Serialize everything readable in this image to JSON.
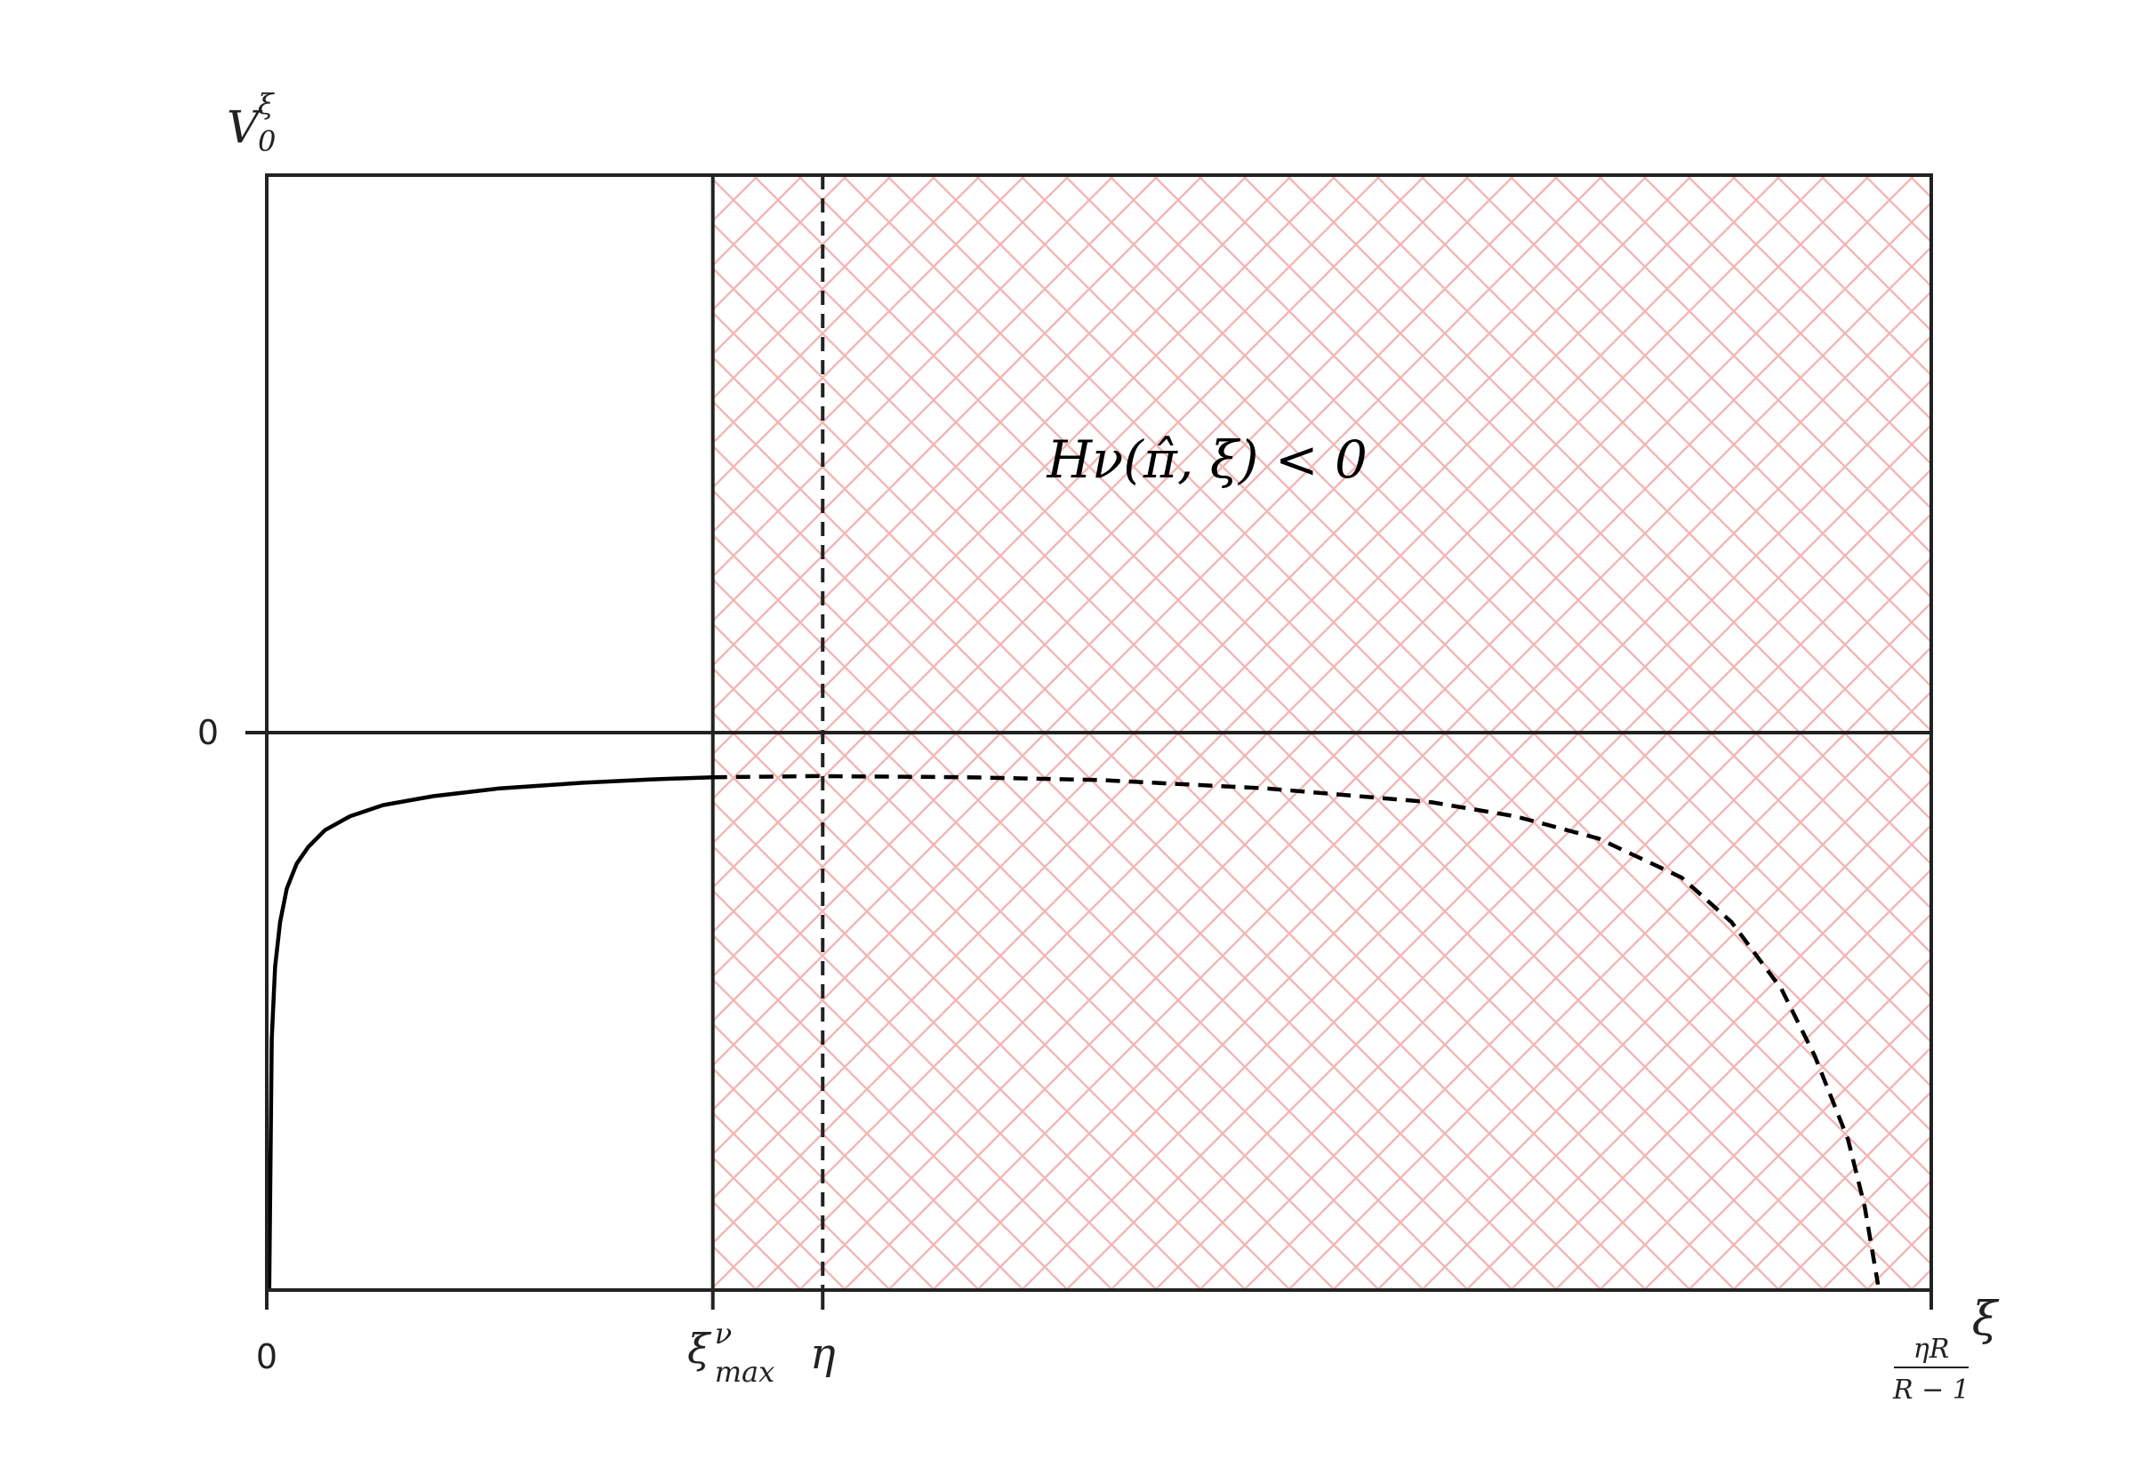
{
  "chart_data": {
    "type": "line",
    "title": "",
    "xlabel": "ξ",
    "ylabel": {
      "base": "V",
      "sub": "0",
      "sup": "ξ"
    },
    "xlim": [
      0,
      1
    ],
    "ylim": [
      -1,
      1
    ],
    "grid": false,
    "x_ticks": [
      {
        "value": 0,
        "label": "0"
      },
      {
        "value": 0.268,
        "label": {
          "base": "ξ",
          "sup": "ν",
          "sub": "max"
        }
      },
      {
        "value": 0.334,
        "label": "η"
      },
      {
        "value": 1.0,
        "label": {
          "numerator": "ηR",
          "denominator": "R − 1"
        }
      }
    ],
    "y_ticks": [
      {
        "value": 0,
        "label": "0"
      }
    ],
    "vertical_lines": [
      {
        "x": 0.268,
        "style": "solid"
      },
      {
        "x": 0.334,
        "style": "dashed"
      }
    ],
    "horizontal_lines": [
      {
        "y": 0,
        "style": "solid"
      }
    ],
    "hatched_region": {
      "x_start": 0.268,
      "x_end": 1.0,
      "pattern": "crosshatch",
      "color": "#f4b6b6"
    },
    "annotation": {
      "text": "Hν(π̂, ξ) < 0",
      "x": 0.565,
      "y": 0.49
    },
    "series": [
      {
        "style": "solid",
        "color": "#000000",
        "points": [
          [
            0.0015,
            -1.0
          ],
          [
            0.003,
            -0.55
          ],
          [
            0.005,
            -0.42
          ],
          [
            0.008,
            -0.34
          ],
          [
            0.012,
            -0.28
          ],
          [
            0.018,
            -0.235
          ],
          [
            0.025,
            -0.205
          ],
          [
            0.035,
            -0.175
          ],
          [
            0.05,
            -0.15
          ],
          [
            0.07,
            -0.13
          ],
          [
            0.1,
            -0.114
          ],
          [
            0.14,
            -0.1
          ],
          [
            0.19,
            -0.09
          ],
          [
            0.23,
            -0.084
          ],
          [
            0.268,
            -0.08
          ]
        ]
      },
      {
        "style": "dashed",
        "color": "#000000",
        "points": [
          [
            0.268,
            -0.08
          ],
          [
            0.33,
            -0.078
          ],
          [
            0.42,
            -0.08
          ],
          [
            0.5,
            -0.085
          ],
          [
            0.6,
            -0.1
          ],
          [
            0.7,
            -0.125
          ],
          [
            0.75,
            -0.15
          ],
          [
            0.8,
            -0.19
          ],
          [
            0.85,
            -0.26
          ],
          [
            0.88,
            -0.34
          ],
          [
            0.91,
            -0.46
          ],
          [
            0.93,
            -0.58
          ],
          [
            0.95,
            -0.73
          ],
          [
            0.96,
            -0.85
          ],
          [
            0.968,
            -0.99
          ]
        ]
      }
    ]
  }
}
